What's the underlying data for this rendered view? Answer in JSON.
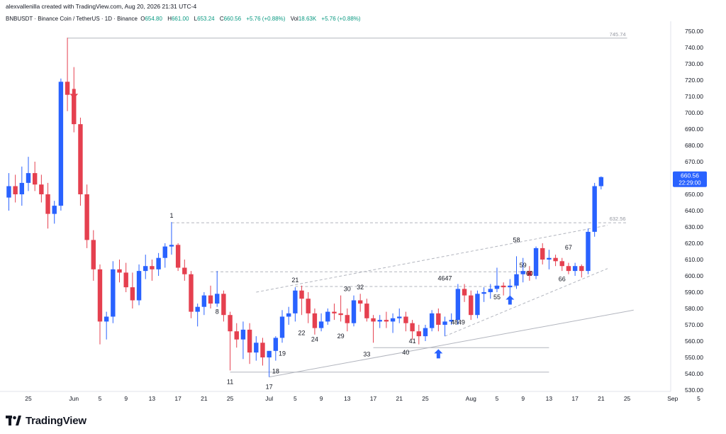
{
  "header": {
    "credit": "alexvallenilla created with TradingView.com, Aug 20, 2026 21:31 UTC-4"
  },
  "legend": {
    "symbol": "BNBUSDT · Binance Coin / TetherUS · 1D · Binance",
    "items": [
      {
        "label": "O",
        "value": "654.80"
      },
      {
        "label": "H",
        "value": "661.00"
      },
      {
        "label": "L",
        "value": "653.24"
      },
      {
        "label": "C",
        "value": "660.56"
      },
      {
        "label": "",
        "value": "+5.76 (+0.88%)"
      },
      {
        "label": "Vol",
        "value": "18.63K"
      },
      {
        "label": "",
        "value": "+5.76 (+0.88%)"
      }
    ]
  },
  "colors": {
    "up": "#2962ff",
    "down": "#e5404f",
    "last_price_bg": "#2962ff",
    "arrow_up": "#2962ff",
    "arrow_down": "#e5404f"
  },
  "chart_data": {
    "type": "candlestick",
    "y_axis": {
      "range": [
        525,
        755
      ],
      "ticks": [
        "530.00",
        "540.00",
        "550.00",
        "560.00",
        "570.00",
        "580.00",
        "590.00",
        "600.00",
        "610.00",
        "620.00",
        "630.00",
        "640.00",
        "650.00",
        "660.00",
        "670.00",
        "680.00",
        "690.00",
        "700.00",
        "710.00",
        "720.00",
        "730.00",
        "740.00",
        "750.00"
      ]
    },
    "x_axis": {
      "ticks": [
        {
          "label": "25",
          "d": 0
        },
        {
          "label": "Jun",
          "d": 7
        },
        {
          "label": "5",
          "d": 11
        },
        {
          "label": "9",
          "d": 15
        },
        {
          "label": "13",
          "d": 19
        },
        {
          "label": "17",
          "d": 23
        },
        {
          "label": "21",
          "d": 27
        },
        {
          "label": "25",
          "d": 31
        },
        {
          "label": "Jul",
          "d": 37
        },
        {
          "label": "5",
          "d": 41
        },
        {
          "label": "9",
          "d": 45
        },
        {
          "label": "13",
          "d": 49
        },
        {
          "label": "17",
          "d": 53
        },
        {
          "label": "21",
          "d": 57
        },
        {
          "label": "25",
          "d": 61
        },
        {
          "label": "Aug",
          "d": 68
        },
        {
          "label": "5",
          "d": 72
        },
        {
          "label": "9",
          "d": 76
        },
        {
          "label": "13",
          "d": 80
        },
        {
          "label": "17",
          "d": 84
        },
        {
          "label": "21",
          "d": 88
        },
        {
          "label": "25",
          "d": 92
        },
        {
          "label": "Sep",
          "d": 99
        },
        {
          "label": "5",
          "d": 103
        }
      ]
    },
    "candles": [
      {
        "d": -3,
        "o": 648,
        "h": 663,
        "l": 640,
        "c": 655
      },
      {
        "d": -2,
        "o": 655,
        "h": 662,
        "l": 645,
        "c": 650
      },
      {
        "d": -1,
        "o": 650,
        "h": 667,
        "l": 643,
        "c": 657
      },
      {
        "d": 0,
        "o": 657,
        "h": 673,
        "l": 652,
        "c": 663
      },
      {
        "d": 1,
        "o": 663,
        "h": 670,
        "l": 652,
        "c": 656
      },
      {
        "d": 2,
        "o": 656,
        "h": 662,
        "l": 645,
        "c": 650
      },
      {
        "d": 3,
        "o": 650,
        "h": 657,
        "l": 629,
        "c": 638
      },
      {
        "d": 4,
        "o": 638,
        "h": 646,
        "l": 632,
        "c": 643
      },
      {
        "d": 5,
        "o": 643,
        "h": 721,
        "l": 640,
        "c": 719
      },
      {
        "d": 6,
        "o": 719,
        "h": 746,
        "l": 701,
        "c": 711
      },
      {
        "d": 7,
        "o": 711,
        "h": 728,
        "l": 688,
        "c": 693
      },
      {
        "d": 8,
        "o": 693,
        "h": 697,
        "l": 643,
        "c": 650
      },
      {
        "d": 9,
        "o": 650,
        "h": 656,
        "l": 617,
        "c": 622
      },
      {
        "d": 10,
        "o": 622,
        "h": 628,
        "l": 597,
        "c": 604
      },
      {
        "d": 11,
        "o": 604,
        "h": 607,
        "l": 558,
        "c": 572
      },
      {
        "d": 12,
        "o": 572,
        "h": 578,
        "l": 561,
        "c": 575
      },
      {
        "d": 13,
        "o": 575,
        "h": 609,
        "l": 571,
        "c": 604
      },
      {
        "d": 14,
        "o": 604,
        "h": 610,
        "l": 596,
        "c": 602
      },
      {
        "d": 15,
        "o": 602,
        "h": 608,
        "l": 590,
        "c": 593
      },
      {
        "d": 16,
        "o": 593,
        "h": 602,
        "l": 580,
        "c": 585
      },
      {
        "d": 17,
        "o": 585,
        "h": 607,
        "l": 582,
        "c": 603
      },
      {
        "d": 18,
        "o": 603,
        "h": 613,
        "l": 598,
        "c": 606
      },
      {
        "d": 19,
        "o": 606,
        "h": 610,
        "l": 597,
        "c": 604
      },
      {
        "d": 20,
        "o": 604,
        "h": 614,
        "l": 600,
        "c": 611
      },
      {
        "d": 21,
        "o": 611,
        "h": 620,
        "l": 605,
        "c": 618
      },
      {
        "d": 22,
        "o": 618,
        "h": 633,
        "l": 613,
        "c": 619
      },
      {
        "d": 23,
        "o": 619,
        "h": 620,
        "l": 603,
        "c": 605
      },
      {
        "d": 24,
        "o": 605,
        "h": 610,
        "l": 597,
        "c": 601
      },
      {
        "d": 25,
        "o": 601,
        "h": 603,
        "l": 574,
        "c": 578
      },
      {
        "d": 26,
        "o": 578,
        "h": 583,
        "l": 569,
        "c": 581
      },
      {
        "d": 27,
        "o": 581,
        "h": 590,
        "l": 576,
        "c": 588
      },
      {
        "d": 28,
        "o": 588,
        "h": 594,
        "l": 580,
        "c": 583
      },
      {
        "d": 29,
        "o": 583,
        "h": 603,
        "l": 581,
        "c": 589
      },
      {
        "d": 30,
        "o": 589,
        "h": 591,
        "l": 572,
        "c": 576
      },
      {
        "d": 31,
        "o": 576,
        "h": 578,
        "l": 542,
        "c": 566
      },
      {
        "d": 32,
        "o": 566,
        "h": 571,
        "l": 556,
        "c": 561
      },
      {
        "d": 33,
        "o": 561,
        "h": 572,
        "l": 549,
        "c": 567
      },
      {
        "d": 34,
        "o": 567,
        "h": 571,
        "l": 546,
        "c": 553
      },
      {
        "d": 35,
        "o": 553,
        "h": 563,
        "l": 548,
        "c": 559
      },
      {
        "d": 36,
        "o": 559,
        "h": 562,
        "l": 545,
        "c": 550
      },
      {
        "d": 37,
        "o": 550,
        "h": 554,
        "l": 538,
        "c": 554
      },
      {
        "d": 38,
        "o": 554,
        "h": 563,
        "l": 548,
        "c": 562
      },
      {
        "d": 39,
        "o": 562,
        "h": 579,
        "l": 559,
        "c": 575
      },
      {
        "d": 40,
        "o": 575,
        "h": 581,
        "l": 570,
        "c": 577
      },
      {
        "d": 41,
        "o": 577,
        "h": 593,
        "l": 572,
        "c": 591
      },
      {
        "d": 42,
        "o": 591,
        "h": 594,
        "l": 576,
        "c": 586
      },
      {
        "d": 43,
        "o": 586,
        "h": 590,
        "l": 571,
        "c": 577
      },
      {
        "d": 44,
        "o": 577,
        "h": 580,
        "l": 564,
        "c": 568
      },
      {
        "d": 45,
        "o": 568,
        "h": 577,
        "l": 566,
        "c": 572
      },
      {
        "d": 46,
        "o": 572,
        "h": 580,
        "l": 570,
        "c": 578
      },
      {
        "d": 47,
        "o": 578,
        "h": 583,
        "l": 573,
        "c": 577
      },
      {
        "d": 48,
        "o": 577,
        "h": 588,
        "l": 572,
        "c": 576
      },
      {
        "d": 49,
        "o": 576,
        "h": 580,
        "l": 566,
        "c": 571
      },
      {
        "d": 50,
        "o": 571,
        "h": 588,
        "l": 569,
        "c": 585
      },
      {
        "d": 51,
        "o": 585,
        "h": 589,
        "l": 578,
        "c": 583
      },
      {
        "d": 52,
        "o": 583,
        "h": 586,
        "l": 572,
        "c": 574
      },
      {
        "d": 53,
        "o": 574,
        "h": 576,
        "l": 559,
        "c": 572
      },
      {
        "d": 54,
        "o": 572,
        "h": 576,
        "l": 568,
        "c": 573
      },
      {
        "d": 55,
        "o": 573,
        "h": 578,
        "l": 568,
        "c": 572
      },
      {
        "d": 56,
        "o": 572,
        "h": 577,
        "l": 565,
        "c": 574
      },
      {
        "d": 57,
        "o": 574,
        "h": 580,
        "l": 571,
        "c": 575
      },
      {
        "d": 58,
        "o": 575,
        "h": 578,
        "l": 566,
        "c": 571
      },
      {
        "d": 59,
        "o": 571,
        "h": 573,
        "l": 561,
        "c": 566
      },
      {
        "d": 60,
        "o": 566,
        "h": 570,
        "l": 558,
        "c": 563
      },
      {
        "d": 61,
        "o": 563,
        "h": 570,
        "l": 560,
        "c": 568
      },
      {
        "d": 62,
        "o": 568,
        "h": 579,
        "l": 566,
        "c": 577
      },
      {
        "d": 63,
        "o": 577,
        "h": 580,
        "l": 566,
        "c": 570
      },
      {
        "d": 64,
        "o": 570,
        "h": 575,
        "l": 563,
        "c": 572
      },
      {
        "d": 65,
        "o": 572,
        "h": 577,
        "l": 570,
        "c": 573
      },
      {
        "d": 66,
        "o": 573,
        "h": 595,
        "l": 570,
        "c": 592
      },
      {
        "d": 67,
        "o": 592,
        "h": 595,
        "l": 584,
        "c": 588
      },
      {
        "d": 68,
        "o": 588,
        "h": 591,
        "l": 573,
        "c": 576
      },
      {
        "d": 69,
        "o": 576,
        "h": 591,
        "l": 574,
        "c": 589
      },
      {
        "d": 70,
        "o": 589,
        "h": 593,
        "l": 584,
        "c": 590
      },
      {
        "d": 71,
        "o": 590,
        "h": 595,
        "l": 586,
        "c": 592
      },
      {
        "d": 72,
        "o": 592,
        "h": 605,
        "l": 590,
        "c": 594
      },
      {
        "d": 73,
        "o": 594,
        "h": 596,
        "l": 588,
        "c": 593
      },
      {
        "d": 74,
        "o": 593,
        "h": 598,
        "l": 585,
        "c": 594
      },
      {
        "d": 75,
        "o": 594,
        "h": 612,
        "l": 592,
        "c": 601
      },
      {
        "d": 76,
        "o": 601,
        "h": 611,
        "l": 596,
        "c": 603
      },
      {
        "d": 77,
        "o": 603,
        "h": 606,
        "l": 597,
        "c": 600
      },
      {
        "d": 78,
        "o": 600,
        "h": 618,
        "l": 598,
        "c": 617
      },
      {
        "d": 79,
        "o": 617,
        "h": 620,
        "l": 607,
        "c": 610
      },
      {
        "d": 80,
        "o": 610,
        "h": 616,
        "l": 604,
        "c": 611
      },
      {
        "d": 81,
        "o": 611,
        "h": 613,
        "l": 606,
        "c": 609
      },
      {
        "d": 82,
        "o": 609,
        "h": 611,
        "l": 603,
        "c": 606
      },
      {
        "d": 83,
        "o": 606,
        "h": 608,
        "l": 601,
        "c": 603
      },
      {
        "d": 84,
        "o": 603,
        "h": 608,
        "l": 600,
        "c": 606
      },
      {
        "d": 85,
        "o": 606,
        "h": 607,
        "l": 599,
        "c": 603
      },
      {
        "d": 86,
        "o": 603,
        "h": 629,
        "l": 601,
        "c": 627
      },
      {
        "d": 87,
        "o": 627,
        "h": 657,
        "l": 624,
        "c": 655
      },
      {
        "d": 88,
        "o": 655,
        "h": 661,
        "l": 653,
        "c": 660.56
      }
    ],
    "last_price": {
      "value": "660.56",
      "countdown": "22:29:00"
    },
    "levels": [
      {
        "label": "745.74",
        "y": 745.74,
        "d1": 6,
        "d2": 92,
        "style": "solid"
      },
      {
        "label": "632.56",
        "y": 632.56,
        "d1": 22,
        "d2": 92,
        "style": "dashed"
      },
      {
        "label": "",
        "y": 602.5,
        "d1": 28,
        "d2": 78,
        "style": "dashed"
      },
      {
        "label": "",
        "y": 593.5,
        "d1": 41,
        "d2": 75,
        "style": "dashed"
      },
      {
        "label": "",
        "y": 556,
        "d1": 53,
        "d2": 80,
        "style": "solid"
      },
      {
        "label": "",
        "y": 541,
        "d1": 31,
        "d2": 80,
        "style": "solid"
      }
    ],
    "trendlines": [
      {
        "d1": 37,
        "y1": 538,
        "d2": 93,
        "y2": 579,
        "style": "solid"
      },
      {
        "d1": 35,
        "y1": 590,
        "d2": 89,
        "y2": 631,
        "style": "dashed"
      },
      {
        "d1": 64,
        "y1": 563,
        "d2": 89,
        "y2": 604.5,
        "style": "dashed"
      }
    ],
    "wave_labels": [
      {
        "text": "1",
        "d": 22,
        "y": 637
      },
      {
        "text": "8",
        "d": 29,
        "y": 578
      },
      {
        "text": "11",
        "d": 31,
        "y": 535
      },
      {
        "text": "17",
        "d": 37,
        "y": 532
      },
      {
        "text": "18",
        "d": 38,
        "y": 541.5
      },
      {
        "text": "19",
        "d": 39,
        "y": 552.5
      },
      {
        "text": "21",
        "d": 41,
        "y": 597.5
      },
      {
        "text": "22",
        "d": 42,
        "y": 565
      },
      {
        "text": "24",
        "d": 44,
        "y": 561
      },
      {
        "text": "29",
        "d": 48,
        "y": 563
      },
      {
        "text": "30",
        "d": 49,
        "y": 592
      },
      {
        "text": "32",
        "d": 51,
        "y": 593
      },
      {
        "text": "33",
        "d": 52,
        "y": 552
      },
      {
        "text": "40",
        "d": 58,
        "y": 553
      },
      {
        "text": "41",
        "d": 59,
        "y": 560
      },
      {
        "text": "4647",
        "d": 64,
        "y": 598.5
      },
      {
        "text": "4849",
        "d": 66,
        "y": 571.5
      },
      {
        "text": "55",
        "d": 72,
        "y": 587
      },
      {
        "text": "58",
        "d": 75,
        "y": 622
      },
      {
        "text": "59",
        "d": 76,
        "y": 606.5
      },
      {
        "text": "60",
        "d": 77,
        "y": 601.5
      },
      {
        "text": "66",
        "d": 82,
        "y": 598
      },
      {
        "text": "67",
        "d": 83,
        "y": 617.5
      }
    ],
    "arrows": [
      {
        "dir": "down",
        "d": 7,
        "y": 712
      },
      {
        "dir": "up",
        "d": 63,
        "y": 552
      },
      {
        "dir": "up",
        "d": 74,
        "y": 585
      }
    ]
  },
  "footer": {
    "brand": "TradingView"
  }
}
